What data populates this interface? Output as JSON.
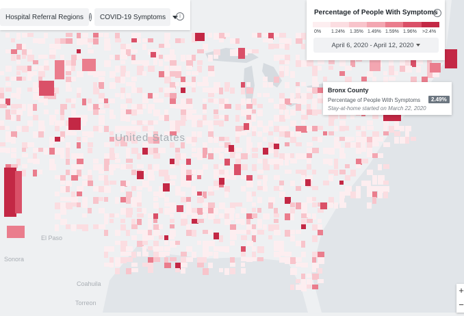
{
  "toolbar": {
    "regions_label": "Hospital Referral Regions",
    "symptoms_label": "COVID-19 Symptoms",
    "info_glyph": "i"
  },
  "legend": {
    "title": "Percentage of People With Symptoms",
    "ticks": [
      "0%",
      "1.24%",
      "1.35%",
      "1.49%",
      "1.59%",
      "1.96%",
      ">2.4%"
    ],
    "colors": [
      "#fdeef0",
      "#fbdde1",
      "#f8c4cb",
      "#f3a6b1",
      "#ea7d8d",
      "#da5068",
      "#c32845"
    ],
    "date_range": "April 6, 2020 - April 12, 2020"
  },
  "tooltip": {
    "title": "Bronx County",
    "metric_label": "Percentage of People With Symptoms",
    "metric_value": "2.49%",
    "note": "Stay-at-home started on March 22, 2020"
  },
  "map_labels": {
    "country_us": "United States",
    "el_paso": "El Paso",
    "sonora": "Sonora",
    "coahuila": "Coahuila",
    "torreon": "Torreon"
  },
  "zoom": {
    "in": "+",
    "out": "−"
  }
}
